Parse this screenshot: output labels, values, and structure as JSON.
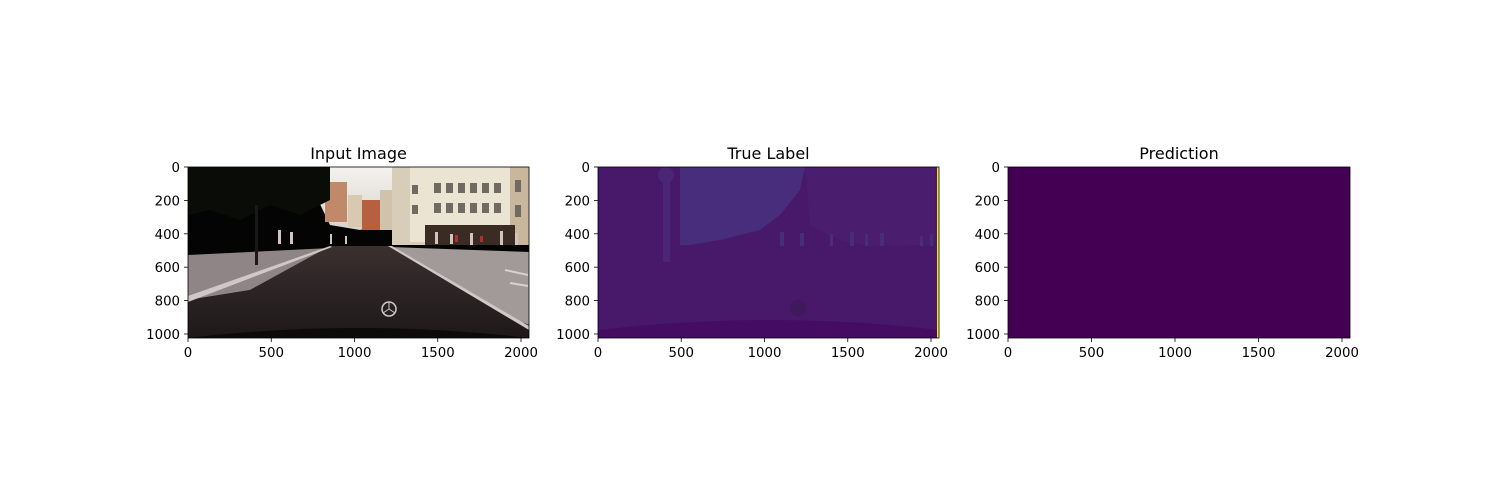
{
  "chart_data": [
    {
      "type": "heatmap",
      "title": "Input Image",
      "image_content": "street-scene-photo",
      "xlim": [
        0,
        2048
      ],
      "ylim": [
        1024,
        0
      ],
      "xticks": [
        0,
        500,
        1000,
        1500,
        2000
      ],
      "yticks": [
        0,
        200,
        400,
        600,
        800,
        1000
      ],
      "xlabel": "",
      "ylabel": "",
      "grid": false
    },
    {
      "type": "heatmap",
      "title": "True Label",
      "image_content": "segmentation-label-map",
      "colormap": "viridis",
      "xlim": [
        0,
        2048
      ],
      "ylim": [
        1024,
        0
      ],
      "xticks": [
        0,
        500,
        1000,
        1500,
        2000
      ],
      "yticks": [
        0,
        200,
        400,
        600,
        800,
        1000
      ],
      "xlabel": "",
      "ylabel": "",
      "grid": false
    },
    {
      "type": "heatmap",
      "title": "Prediction",
      "image_content": "uniform-prediction-map",
      "colormap": "viridis",
      "xlim": [
        0,
        2048
      ],
      "ylim": [
        1024,
        0
      ],
      "xticks": [
        0,
        500,
        1000,
        1500,
        2000
      ],
      "yticks": [
        0,
        200,
        400,
        600,
        800,
        1000
      ],
      "xlabel": "",
      "ylabel": "",
      "grid": false
    }
  ],
  "colors": {
    "viridis_min": "#440154",
    "label_road": "#48186a",
    "label_sky_building": "#472d7b",
    "label_boundary": "#fde725"
  }
}
